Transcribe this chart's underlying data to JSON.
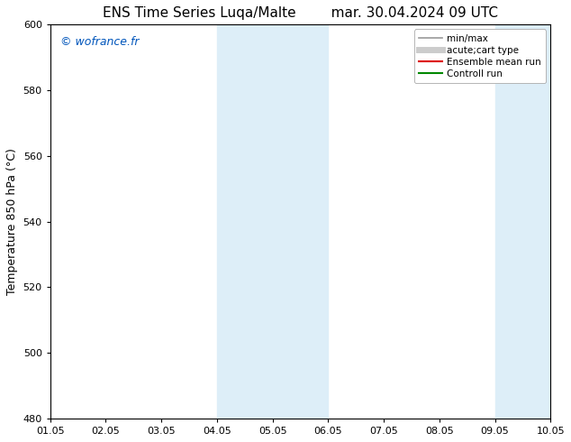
{
  "title_left": "ENS Time Series Luqa/Malte",
  "title_right": "mar. 30.04.2024 09 UTC",
  "ylabel": "Temperature 850 hPa (°C)",
  "ylim": [
    480,
    600
  ],
  "yticks": [
    480,
    500,
    520,
    540,
    560,
    580,
    600
  ],
  "xlim": [
    0,
    9
  ],
  "xtick_positions": [
    0,
    1,
    2,
    3,
    4,
    5,
    6,
    7,
    8,
    9
  ],
  "xtick_labels": [
    "01.05",
    "02.05",
    "03.05",
    "04.05",
    "05.05",
    "06.05",
    "07.05",
    "08.05",
    "09.05",
    "10.05"
  ],
  "shaded_regions": [
    {
      "xstart": 3.0,
      "xend": 5.0
    },
    {
      "xstart": 8.0,
      "xend": 9.5
    }
  ],
  "shaded_color": "#ddeef8",
  "watermark_text": "© wofrance.fr",
  "watermark_color": "#0055bb",
  "legend_entries": [
    {
      "label": "min/max",
      "color": "#999999",
      "lw": 1.2,
      "style": "solid"
    },
    {
      "label": "acute;cart type",
      "color": "#cccccc",
      "lw": 5,
      "style": "solid"
    },
    {
      "label": "Ensemble mean run",
      "color": "#dd0000",
      "lw": 1.5,
      "style": "solid"
    },
    {
      "label": "Controll run",
      "color": "#008800",
      "lw": 1.5,
      "style": "solid"
    }
  ],
  "bg_color": "#ffffff",
  "spine_color": "#000000",
  "title_fontsize": 11,
  "axis_label_fontsize": 9,
  "tick_fontsize": 8,
  "watermark_fontsize": 9,
  "legend_fontsize": 7.5
}
